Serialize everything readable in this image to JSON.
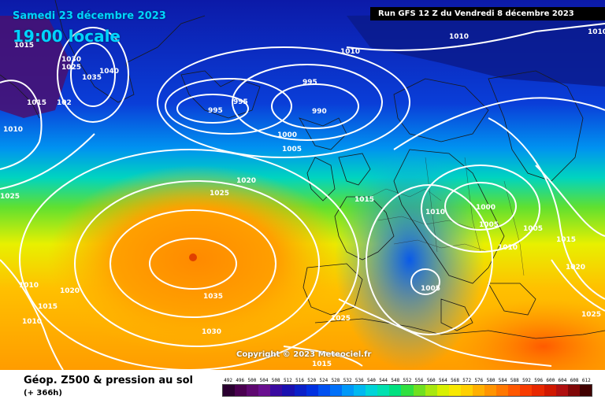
{
  "title": {
    "date": "Samedi 23 décembre 2023",
    "time": "19:00 locale"
  },
  "run_info": "Run GFS 12 Z du Vendredi 8 décembre 2023",
  "copyright": "Copyright © 2023 Meteociel.fr",
  "legend": {
    "title": "Géop. Z500 & pression au sol",
    "subtitle": "(+ 366h)",
    "scale_values": [
      "492",
      "496",
      "500",
      "504",
      "508",
      "512",
      "516",
      "520",
      "524",
      "528",
      "532",
      "536",
      "540",
      "544",
      "548",
      "552",
      "556",
      "560",
      "564",
      "568",
      "572",
      "576",
      "580",
      "584",
      "588",
      "592",
      "596",
      "600",
      "604",
      "608",
      "612"
    ],
    "scale_colors": [
      "#2a0030",
      "#4a0050",
      "#5e0870",
      "#6a1090",
      "#3a0aa0",
      "#1a10b0",
      "#0a20c8",
      "#0030e0",
      "#0050f0",
      "#0070f8",
      "#0098f8",
      "#00b8f0",
      "#00d4d8",
      "#00e0b0",
      "#00e080",
      "#30e040",
      "#70e020",
      "#a8e810",
      "#d8f000",
      "#f8e800",
      "#ffd000",
      "#ffb000",
      "#ff9400",
      "#ff7800",
      "#ff5800",
      "#f83c00",
      "#e82800",
      "#d01800",
      "#b01010",
      "#800808",
      "#400000"
    ]
  },
  "isobars": [
    {
      "id": "p1",
      "text": "1015"
    },
    {
      "id": "p2",
      "text": "1030"
    },
    {
      "id": "p3",
      "text": "1025"
    },
    {
      "id": "p4",
      "text": "1040"
    },
    {
      "id": "p5",
      "text": "1035"
    },
    {
      "id": "p6",
      "text": "1015"
    },
    {
      "id": "p7",
      "text": "102"
    },
    {
      "id": "p8",
      "text": "1010"
    },
    {
      "id": "p9",
      "text": "1010"
    },
    {
      "id": "p10",
      "text": "995"
    },
    {
      "id": "p11",
      "text": "995"
    },
    {
      "id": "p12",
      "text": "995"
    },
    {
      "id": "p13",
      "text": "990"
    },
    {
      "id": "p14",
      "text": "1000"
    },
    {
      "id": "p15",
      "text": "1005"
    },
    {
      "id": "p16",
      "text": "1010"
    },
    {
      "id": "p17",
      "text": "1010"
    },
    {
      "id": "p18",
      "text": "1025"
    },
    {
      "id": "p19",
      "text": "1020"
    },
    {
      "id": "p20",
      "text": "1025"
    },
    {
      "id": "p21",
      "text": "1015"
    },
    {
      "id": "p22",
      "text": "1010"
    },
    {
      "id": "p23",
      "text": "1000"
    },
    {
      "id": "p24",
      "text": "1005"
    },
    {
      "id": "p25",
      "text": "1005"
    },
    {
      "id": "p26",
      "text": "1015"
    },
    {
      "id": "p27",
      "text": "1010"
    },
    {
      "id": "p28",
      "text": "1020"
    },
    {
      "id": "p29",
      "text": "1005"
    },
    {
      "id": "p30",
      "text": "1010"
    },
    {
      "id": "p31",
      "text": "1020"
    },
    {
      "id": "p32",
      "text": "1015"
    },
    {
      "id": "p33",
      "text": "1010"
    },
    {
      "id": "p34",
      "text": "1035"
    },
    {
      "id": "p35",
      "text": "1030"
    },
    {
      "id": "p36",
      "text": "1025"
    },
    {
      "id": "p37",
      "text": "1025"
    },
    {
      "id": "p38",
      "text": "1015"
    }
  ]
}
